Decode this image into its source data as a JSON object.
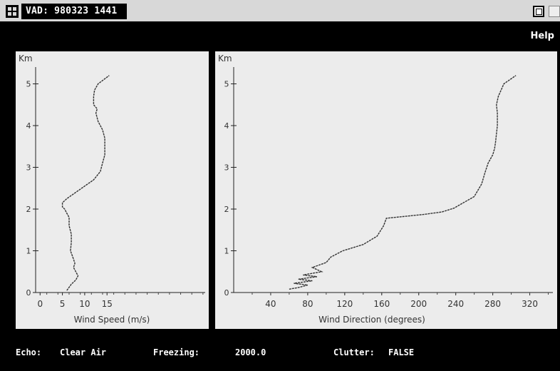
{
  "window": {
    "title": "VAD: 980323 1441"
  },
  "menu": {
    "help_label": "Help"
  },
  "speed_chart": {
    "type": "line",
    "ylabel": "Km",
    "xlabel": "Wind Speed (m/s)",
    "xlim": [
      -1,
      37
    ],
    "ylim": [
      0,
      5.3
    ],
    "xticks": [
      0,
      5,
      10,
      15
    ],
    "yticks": [
      0,
      1,
      2,
      3,
      4,
      5
    ],
    "series": [
      {
        "x": [
          6,
          7,
          8,
          8.5,
          8,
          7.5,
          7.8,
          7.5,
          6.8,
          7,
          7,
          6.5,
          6.5,
          6,
          5.5,
          5,
          5,
          6,
          8,
          10,
          12,
          13.5,
          14,
          14.5,
          14.5,
          14.5,
          14,
          13.5,
          13,
          12.5,
          12.8,
          12,
          12,
          12.2,
          13,
          15.5
        ],
        "y": [
          0.05,
          0.2,
          0.3,
          0.4,
          0.5,
          0.6,
          0.7,
          0.8,
          1.0,
          1.2,
          1.4,
          1.6,
          1.8,
          1.9,
          2.0,
          2.05,
          2.15,
          2.25,
          2.4,
          2.55,
          2.7,
          2.9,
          3.1,
          3.3,
          3.5,
          3.7,
          3.9,
          4.0,
          4.1,
          4.3,
          4.4,
          4.5,
          4.7,
          4.85,
          5.0,
          5.2
        ]
      }
    ]
  },
  "direction_chart": {
    "type": "line",
    "ylabel": "Km",
    "xlabel": "Wind Direction (degrees)",
    "xlim": [
      0,
      345
    ],
    "ylim": [
      0,
      5.3
    ],
    "xticks": [
      40,
      80,
      120,
      160,
      200,
      240,
      280,
      320
    ],
    "yticks": [
      0,
      1,
      2,
      3,
      4,
      5
    ],
    "series": [
      {
        "x": [
          60,
          70,
          80,
          65,
          85,
          70,
          90,
          75,
          95,
          85,
          100,
          105,
          118,
          140,
          155,
          162,
          165,
          205,
          225,
          238,
          260,
          268,
          272,
          275,
          280,
          282,
          283,
          284,
          285,
          285,
          284,
          286,
          292,
          305
        ],
        "y": [
          0.08,
          0.12,
          0.18,
          0.22,
          0.28,
          0.32,
          0.38,
          0.42,
          0.5,
          0.6,
          0.72,
          0.85,
          1.0,
          1.15,
          1.35,
          1.6,
          1.78,
          1.87,
          1.93,
          2.02,
          2.3,
          2.6,
          2.9,
          3.1,
          3.3,
          3.45,
          3.6,
          3.8,
          4.0,
          4.3,
          4.5,
          4.7,
          5.0,
          5.2
        ]
      }
    ]
  },
  "footer": {
    "echo_label": "Echo:",
    "echo_value": "Clear Air",
    "freezing_label": "Freezing:",
    "freezing_value": "2000.0",
    "clutter_label": "Clutter:",
    "clutter_value": "FALSE"
  }
}
